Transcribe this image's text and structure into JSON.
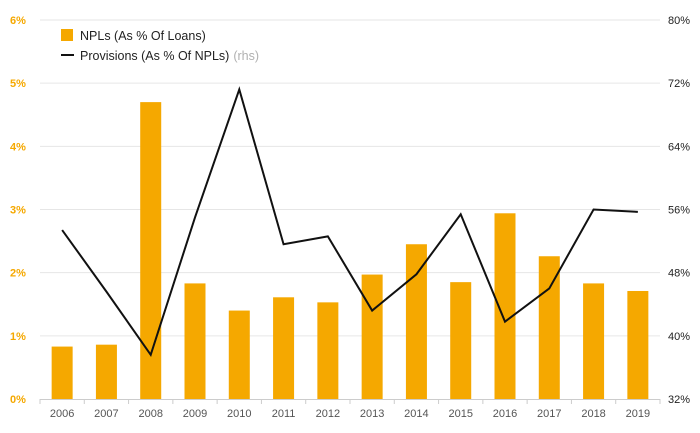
{
  "chart_data": {
    "type": "bar",
    "categories": [
      "2006",
      "2007",
      "2008",
      "2009",
      "2010",
      "2011",
      "2012",
      "2013",
      "2014",
      "2015",
      "2016",
      "2017",
      "2018",
      "2019"
    ],
    "series": [
      {
        "name": "NPLs (As % Of Loans)",
        "type": "bar",
        "axis": "left",
        "color": "#f5a800",
        "values": [
          0.83,
          0.86,
          4.7,
          1.83,
          1.4,
          1.61,
          1.53,
          1.97,
          2.45,
          1.85,
          2.94,
          2.26,
          1.83,
          1.71
        ]
      },
      {
        "name": "Provisions (As % Of NPLs)",
        "name_note": "(rhs)",
        "type": "line",
        "axis": "right",
        "color": "#111111",
        "values": [
          53.4,
          45.6,
          37.6,
          55.0,
          71.2,
          51.6,
          52.6,
          43.2,
          47.8,
          55.4,
          41.8,
          46.0,
          56.0,
          55.7
        ]
      }
    ],
    "y_left": {
      "ylim": [
        0,
        6
      ],
      "ticks": [
        "0%",
        "1%",
        "2%",
        "3%",
        "4%",
        "5%",
        "6%"
      ],
      "tick_color": "#f5a800"
    },
    "y_right": {
      "ylim": [
        32,
        80
      ],
      "ticks": [
        "32%",
        "40%",
        "48%",
        "56%",
        "64%",
        "72%",
        "80%"
      ]
    },
    "grid": true,
    "legend": "top-left",
    "title": "",
    "xlabel": "",
    "ylabel": ""
  }
}
